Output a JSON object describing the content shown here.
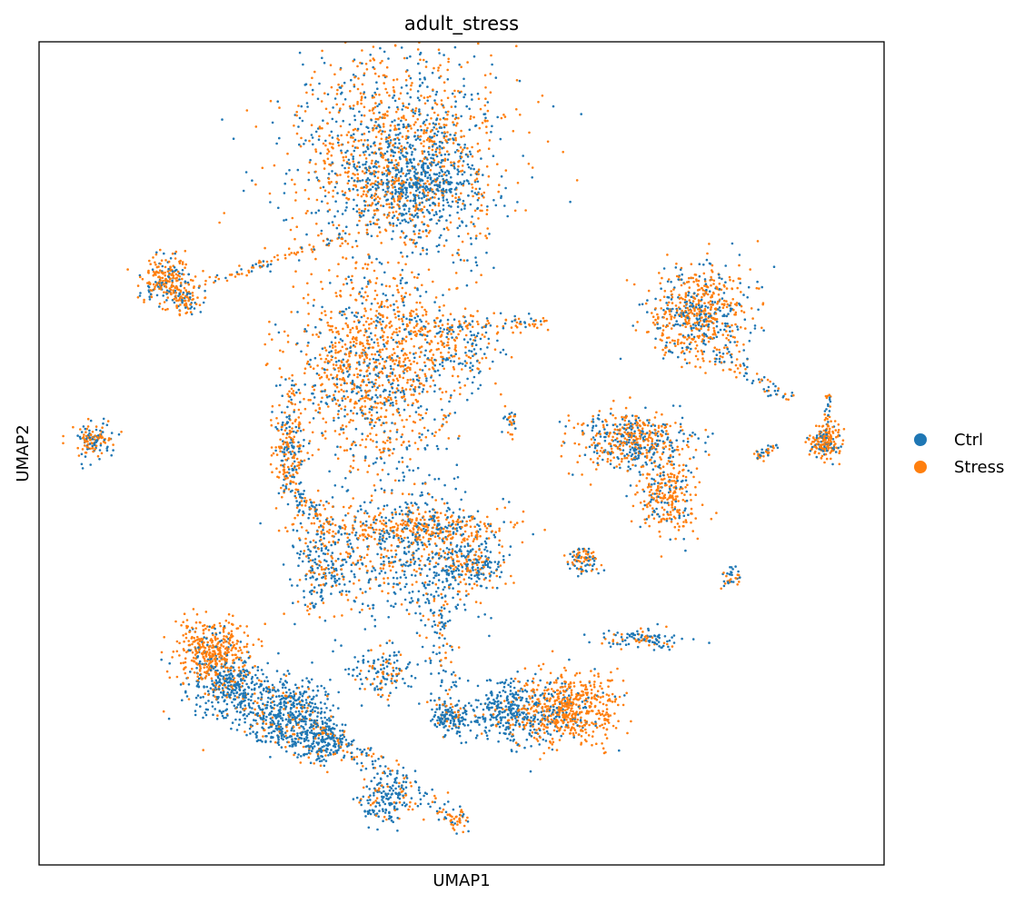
{
  "chart_data": {
    "type": "scatter",
    "title": "adult_stress",
    "xlabel": "UMAP1",
    "ylabel": "UMAP2",
    "xlim": [
      0,
      100
    ],
    "ylim": [
      0,
      100
    ],
    "ticks_shown": false,
    "grid": false,
    "legend_placement": "right",
    "series": [
      {
        "name": "Ctrl",
        "color": "#1f77b4"
      },
      {
        "name": "Stress",
        "color": "#ff7f0e"
      }
    ],
    "clusters": [
      {
        "cx": 42.5,
        "cy": 86.0,
        "sx": 6.5,
        "sy": 6.5,
        "n": 1500,
        "stress_frac": 0.55
      },
      {
        "cx": 44.5,
        "cy": 83.0,
        "sx": 3.0,
        "sy": 2.5,
        "n": 350,
        "stress_frac": 0.1
      },
      {
        "cx": 39.5,
        "cy": 60.0,
        "sx": 4.8,
        "sy": 6.0,
        "n": 1200,
        "stress_frac": 0.65
      },
      {
        "cx": 49.5,
        "cy": 63.0,
        "sx": 2.5,
        "sy": 2.0,
        "n": 150,
        "stress_frac": 0.5
      },
      {
        "cx": 15.0,
        "cy": 71.0,
        "sx": 1.5,
        "sy": 1.5,
        "n": 220,
        "stress_frac": 0.7
      },
      {
        "cx": 17.5,
        "cy": 69.0,
        "sx": 1.0,
        "sy": 1.2,
        "n": 90,
        "stress_frac": 0.55
      },
      {
        "cx": 6.5,
        "cy": 51.5,
        "sx": 1.2,
        "sy": 1.0,
        "n": 140,
        "stress_frac": 0.6
      },
      {
        "cx": 29.5,
        "cy": 51.0,
        "sx": 0.9,
        "sy": 3.0,
        "n": 200,
        "stress_frac": 0.6
      },
      {
        "cx": 55.8,
        "cy": 54.0,
        "sx": 0.4,
        "sy": 0.8,
        "n": 30,
        "stress_frac": 0.5
      },
      {
        "cx": 78.0,
        "cy": 67.0,
        "sx": 3.0,
        "sy": 3.0,
        "n": 650,
        "stress_frac": 0.6
      },
      {
        "cx": 70.5,
        "cy": 51.5,
        "sx": 3.2,
        "sy": 1.8,
        "n": 500,
        "stress_frac": 0.55
      },
      {
        "cx": 74.5,
        "cy": 45.0,
        "sx": 1.8,
        "sy": 2.5,
        "n": 280,
        "stress_frac": 0.8
      },
      {
        "cx": 93.0,
        "cy": 51.5,
        "sx": 0.9,
        "sy": 1.0,
        "n": 200,
        "stress_frac": 0.7
      },
      {
        "cx": 64.5,
        "cy": 37.0,
        "sx": 0.9,
        "sy": 0.8,
        "n": 90,
        "stress_frac": 0.6
      },
      {
        "cx": 82.0,
        "cy": 35.0,
        "sx": 0.6,
        "sy": 0.6,
        "n": 35,
        "stress_frac": 0.5
      },
      {
        "cx": 71.5,
        "cy": 27.5,
        "sx": 2.5,
        "sy": 0.6,
        "n": 110,
        "stress_frac": 0.3
      },
      {
        "cx": 33.5,
        "cy": 37.0,
        "sx": 2.0,
        "sy": 3.5,
        "n": 260,
        "stress_frac": 0.35
      },
      {
        "cx": 45.0,
        "cy": 38.0,
        "sx": 5.0,
        "sy": 4.0,
        "n": 650,
        "stress_frac": 0.35
      },
      {
        "cx": 44.0,
        "cy": 41.0,
        "sx": 6.0,
        "sy": 0.9,
        "n": 260,
        "stress_frac": 0.8
      },
      {
        "cx": 51.0,
        "cy": 36.5,
        "sx": 1.8,
        "sy": 1.5,
        "n": 170,
        "stress_frac": 0.4
      },
      {
        "cx": 20.5,
        "cy": 26.0,
        "sx": 2.2,
        "sy": 2.0,
        "n": 420,
        "stress_frac": 0.85
      },
      {
        "cx": 23.0,
        "cy": 21.5,
        "sx": 2.5,
        "sy": 1.8,
        "n": 360,
        "stress_frac": 0.15
      },
      {
        "cx": 29.5,
        "cy": 18.5,
        "sx": 2.5,
        "sy": 2.0,
        "n": 420,
        "stress_frac": 0.15
      },
      {
        "cx": 34.0,
        "cy": 15.5,
        "sx": 1.5,
        "sy": 1.2,
        "n": 200,
        "stress_frac": 0.15
      },
      {
        "cx": 41.0,
        "cy": 8.0,
        "sx": 1.5,
        "sy": 1.5,
        "n": 160,
        "stress_frac": 0.2
      },
      {
        "cx": 40.5,
        "cy": 23.5,
        "sx": 2.0,
        "sy": 1.5,
        "n": 130,
        "stress_frac": 0.4
      },
      {
        "cx": 48.5,
        "cy": 18.0,
        "sx": 1.2,
        "sy": 1.0,
        "n": 150,
        "stress_frac": 0.15
      },
      {
        "cx": 56.0,
        "cy": 18.5,
        "sx": 3.0,
        "sy": 2.0,
        "n": 420,
        "stress_frac": 0.15
      },
      {
        "cx": 63.0,
        "cy": 19.0,
        "sx": 2.8,
        "sy": 2.3,
        "n": 500,
        "stress_frac": 0.9
      },
      {
        "cx": 49.5,
        "cy": 5.5,
        "sx": 0.8,
        "sy": 0.6,
        "n": 40,
        "stress_frac": 0.8
      }
    ],
    "bridges": [
      {
        "from": [
          18.0,
          70.0
        ],
        "to": [
          37.0,
          76.5
        ],
        "n": 80,
        "spread": 0.4,
        "stress_frac": 0.7
      },
      {
        "from": [
          30.0,
          46.0
        ],
        "to": [
          33.0,
          42.0
        ],
        "n": 60,
        "spread": 0.5,
        "stress_frac": 0.5
      },
      {
        "from": [
          44.0,
          65.0
        ],
        "to": [
          60.0,
          66.0
        ],
        "n": 110,
        "spread": 0.6,
        "stress_frac": 0.65
      },
      {
        "from": [
          35.5,
          15.0
        ],
        "to": [
          49.5,
          5.5
        ],
        "n": 110,
        "spread": 0.9,
        "stress_frac": 0.3
      },
      {
        "from": [
          47.0,
          33.0
        ],
        "to": [
          48.5,
          20.0
        ],
        "n": 90,
        "spread": 1.0,
        "stress_frac": 0.3
      },
      {
        "from": [
          80.0,
          62.0
        ],
        "to": [
          89.0,
          56.5
        ],
        "n": 60,
        "spread": 0.5,
        "stress_frac": 0.6
      },
      {
        "from": [
          93.0,
          53.0
        ],
        "to": [
          93.5,
          57.0
        ],
        "n": 25,
        "spread": 0.2,
        "stress_frac": 0.7
      },
      {
        "from": [
          87.5,
          51.0
        ],
        "to": [
          85.0,
          49.5
        ],
        "n": 35,
        "spread": 0.3,
        "stress_frac": 0.5
      },
      {
        "from": [
          27.0,
          17.0
        ],
        "to": [
          34.5,
          12.5
        ],
        "n": 90,
        "spread": 0.8,
        "stress_frac": 0.25
      }
    ],
    "seed": 20240611
  }
}
